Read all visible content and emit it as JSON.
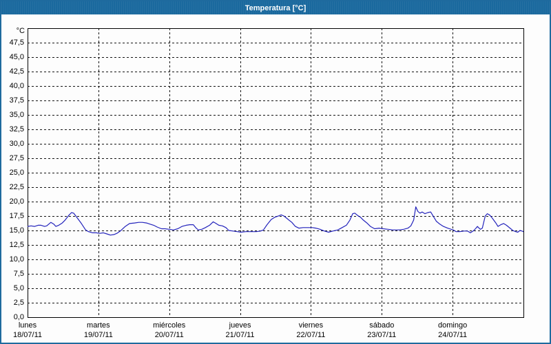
{
  "window": {
    "title": "Temperatura [°C]",
    "titlebar_color": "#1A699E",
    "border_color": "#1E6A9E"
  },
  "chart_data": {
    "type": "line",
    "title": "Temperatura [°C]",
    "ylabel": "°C",
    "grid": "dashed",
    "line_color": "#2222BB",
    "frame_color": "#000000",
    "legend": "none",
    "x_axis": {
      "span_days": 7,
      "days": [
        {
          "name": "lunes",
          "date": "18/07/11"
        },
        {
          "name": "martes",
          "date": "19/07/11"
        },
        {
          "name": "miércoles",
          "date": "20/07/11"
        },
        {
          "name": "jueves",
          "date": "21/07/11"
        },
        {
          "name": "viernes",
          "date": "22/07/11"
        },
        {
          "name": "sábado",
          "date": "23/07/11"
        },
        {
          "name": "domingo",
          "date": "24/07/11"
        }
      ]
    },
    "y_axis": {
      "min": 0,
      "max": 50,
      "tick_step": 2.5,
      "tick_labels": [
        "0,0",
        "2,5",
        "5,0",
        "7,5",
        "10,0",
        "12,5",
        "15,0",
        "17,5",
        "20,0",
        "22,5",
        "25,0",
        "27,5",
        "30,0",
        "32,5",
        "35,0",
        "37,5",
        "40,0",
        "42,5",
        "45,0",
        "47,5"
      ]
    },
    "series": [
      {
        "name": "Temperatura",
        "points_days_degC": [
          [
            0.0,
            15.7
          ],
          [
            0.05,
            15.8
          ],
          [
            0.1,
            15.7
          ],
          [
            0.15,
            15.9
          ],
          [
            0.19,
            15.9
          ],
          [
            0.24,
            15.7
          ],
          [
            0.27,
            15.8
          ],
          [
            0.33,
            16.4
          ],
          [
            0.37,
            16.1
          ],
          [
            0.4,
            15.7
          ],
          [
            0.44,
            15.9
          ],
          [
            0.49,
            16.3
          ],
          [
            0.53,
            16.8
          ],
          [
            0.58,
            17.6
          ],
          [
            0.62,
            18.1
          ],
          [
            0.65,
            18.0
          ],
          [
            0.7,
            17.2
          ],
          [
            0.76,
            16.2
          ],
          [
            0.82,
            15.1
          ],
          [
            0.86,
            14.8
          ],
          [
            0.92,
            14.6
          ],
          [
            0.97,
            14.6
          ],
          [
            1.02,
            14.5
          ],
          [
            1.07,
            14.6
          ],
          [
            1.12,
            14.4
          ],
          [
            1.17,
            14.2
          ],
          [
            1.22,
            14.3
          ],
          [
            1.26,
            14.5
          ],
          [
            1.31,
            14.9
          ],
          [
            1.38,
            15.7
          ],
          [
            1.44,
            16.2
          ],
          [
            1.51,
            16.3
          ],
          [
            1.57,
            16.4
          ],
          [
            1.62,
            16.4
          ],
          [
            1.68,
            16.3
          ],
          [
            1.73,
            16.1
          ],
          [
            1.78,
            15.9
          ],
          [
            1.83,
            15.6
          ],
          [
            1.89,
            15.3
          ],
          [
            1.94,
            15.3
          ],
          [
            2.0,
            15.2
          ],
          [
            2.06,
            15.1
          ],
          [
            2.12,
            15.3
          ],
          [
            2.18,
            15.7
          ],
          [
            2.24,
            15.9
          ],
          [
            2.29,
            16.0
          ],
          [
            2.34,
            16.0
          ],
          [
            2.38,
            15.4
          ],
          [
            2.41,
            15.1
          ],
          [
            2.46,
            15.2
          ],
          [
            2.51,
            15.5
          ],
          [
            2.57,
            15.9
          ],
          [
            2.62,
            16.5
          ],
          [
            2.65,
            16.3
          ],
          [
            2.7,
            15.9
          ],
          [
            2.75,
            15.8
          ],
          [
            2.8,
            15.5
          ],
          [
            2.84,
            15.0
          ],
          [
            2.9,
            14.9
          ],
          [
            2.96,
            14.8
          ],
          [
            3.01,
            14.7
          ],
          [
            3.08,
            14.8
          ],
          [
            3.16,
            14.8
          ],
          [
            3.23,
            14.8
          ],
          [
            3.29,
            14.9
          ],
          [
            3.33,
            15.1
          ],
          [
            3.38,
            16.0
          ],
          [
            3.44,
            16.9
          ],
          [
            3.49,
            17.3
          ],
          [
            3.54,
            17.5
          ],
          [
            3.58,
            17.7
          ],
          [
            3.62,
            17.5
          ],
          [
            3.66,
            17.1
          ],
          [
            3.69,
            16.8
          ],
          [
            3.73,
            16.4
          ],
          [
            3.78,
            15.7
          ],
          [
            3.83,
            15.4
          ],
          [
            3.89,
            15.5
          ],
          [
            3.96,
            15.5
          ],
          [
            4.02,
            15.5
          ],
          [
            4.07,
            15.4
          ],
          [
            4.13,
            15.2
          ],
          [
            4.19,
            14.9
          ],
          [
            4.25,
            14.7
          ],
          [
            4.31,
            14.9
          ],
          [
            4.38,
            15.1
          ],
          [
            4.44,
            15.5
          ],
          [
            4.5,
            15.9
          ],
          [
            4.55,
            16.8
          ],
          [
            4.59,
            17.9
          ],
          [
            4.62,
            18.0
          ],
          [
            4.66,
            17.6
          ],
          [
            4.7,
            17.3
          ],
          [
            4.74,
            16.8
          ],
          [
            4.79,
            16.3
          ],
          [
            4.84,
            15.7
          ],
          [
            4.9,
            15.3
          ],
          [
            4.96,
            15.4
          ],
          [
            5.02,
            15.3
          ],
          [
            5.09,
            15.2
          ],
          [
            5.16,
            15.1
          ],
          [
            5.24,
            15.1
          ],
          [
            5.31,
            15.2
          ],
          [
            5.37,
            15.4
          ],
          [
            5.41,
            15.8
          ],
          [
            5.45,
            16.8
          ],
          [
            5.48,
            19.1
          ],
          [
            5.51,
            18.3
          ],
          [
            5.54,
            18.0
          ],
          [
            5.57,
            18.2
          ],
          [
            5.61,
            17.9
          ],
          [
            5.65,
            18.1
          ],
          [
            5.69,
            18.2
          ],
          [
            5.73,
            17.4
          ],
          [
            5.77,
            16.6
          ],
          [
            5.82,
            16.1
          ],
          [
            5.87,
            15.7
          ],
          [
            5.93,
            15.4
          ],
          [
            5.98,
            15.2
          ],
          [
            6.01,
            15.1
          ],
          [
            6.05,
            14.8
          ],
          [
            6.1,
            14.8
          ],
          [
            6.16,
            14.9
          ],
          [
            6.21,
            14.9
          ],
          [
            6.25,
            14.6
          ],
          [
            6.3,
            15.0
          ],
          [
            6.33,
            15.4
          ],
          [
            6.35,
            15.7
          ],
          [
            6.39,
            15.2
          ],
          [
            6.42,
            15.4
          ],
          [
            6.46,
            17.5
          ],
          [
            6.49,
            17.9
          ],
          [
            6.52,
            17.7
          ],
          [
            6.55,
            17.3
          ],
          [
            6.58,
            16.8
          ],
          [
            6.61,
            16.3
          ],
          [
            6.64,
            15.7
          ],
          [
            6.68,
            16.0
          ],
          [
            6.72,
            16.2
          ],
          [
            6.76,
            15.9
          ],
          [
            6.81,
            15.4
          ],
          [
            6.85,
            15.0
          ],
          [
            6.89,
            14.8
          ],
          [
            6.92,
            14.7
          ],
          [
            6.95,
            15.0
          ],
          [
            6.98,
            14.9
          ],
          [
            7.0,
            14.8
          ]
        ]
      }
    ]
  }
}
